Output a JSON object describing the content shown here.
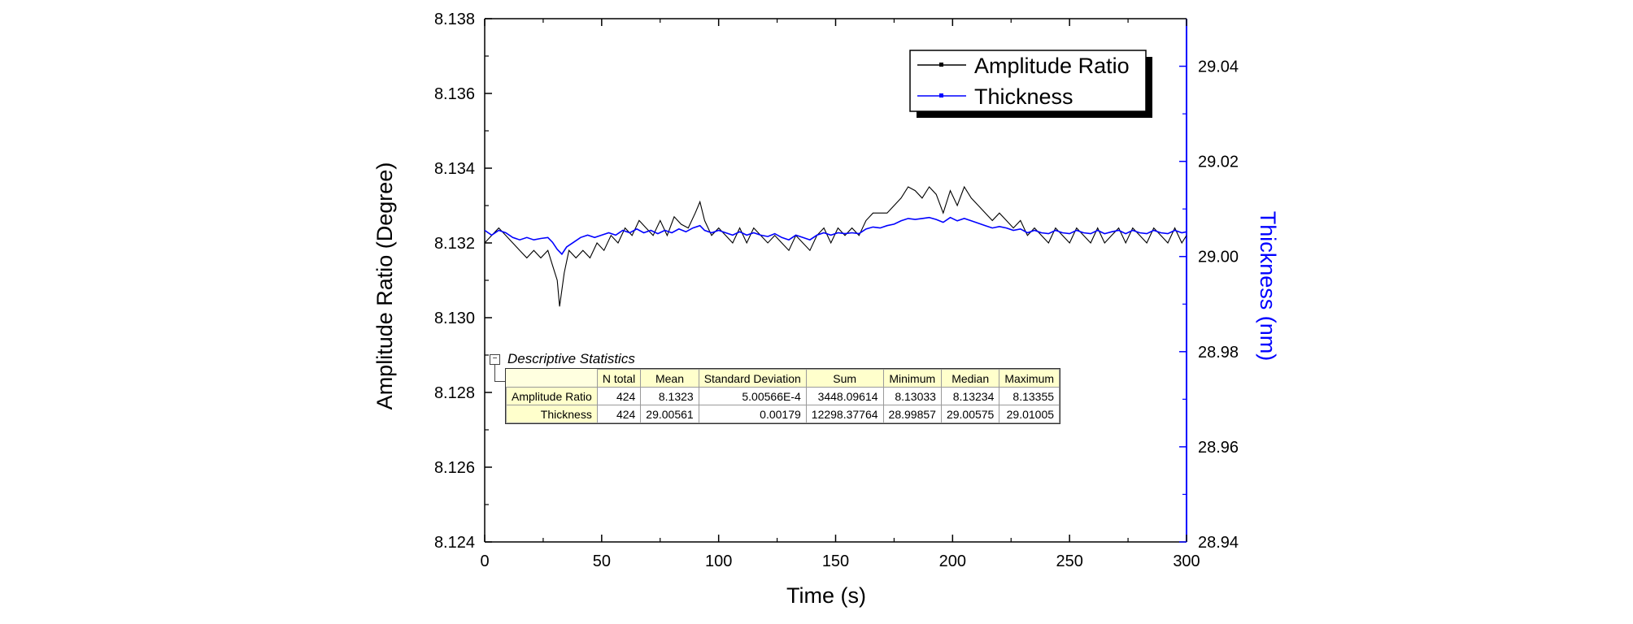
{
  "chart_data": {
    "type": "line",
    "xlabel": "Time (s)",
    "ylabel_left": "Amplitude Ratio (Degree)",
    "ylabel_right": "Thickness (nm)",
    "xlim": [
      0,
      300
    ],
    "ylim_left": [
      8.124,
      8.138
    ],
    "ylim_right": [
      28.94,
      29.05
    ],
    "x_ticks": [
      0,
      50,
      100,
      150,
      200,
      250,
      300
    ],
    "y_left_ticks": [
      "8.124",
      "8.126",
      "8.128",
      "8.130",
      "8.132",
      "8.134",
      "8.136",
      "8.138"
    ],
    "y_right_ticks": [
      "28.94",
      "28.96",
      "28.98",
      "29.00",
      "29.02",
      "29.04"
    ],
    "grid": false,
    "legend_position": "top-right",
    "series": [
      {
        "name": "Amplitude Ratio",
        "axis": "left",
        "color": "#000000",
        "points": [
          [
            0,
            8.132
          ],
          [
            3,
            8.1322
          ],
          [
            6,
            8.1324
          ],
          [
            9,
            8.1322
          ],
          [
            12,
            8.132
          ],
          [
            15,
            8.1318
          ],
          [
            18,
            8.1316
          ],
          [
            21,
            8.1318
          ],
          [
            24,
            8.1316
          ],
          [
            27,
            8.1318
          ],
          [
            29,
            8.1314
          ],
          [
            31,
            8.131
          ],
          [
            32,
            8.1303
          ],
          [
            34,
            8.1312
          ],
          [
            36,
            8.1318
          ],
          [
            39,
            8.1316
          ],
          [
            42,
            8.1318
          ],
          [
            45,
            8.1316
          ],
          [
            48,
            8.132
          ],
          [
            51,
            8.1318
          ],
          [
            54,
            8.1322
          ],
          [
            57,
            8.132
          ],
          [
            60,
            8.1324
          ],
          [
            63,
            8.1322
          ],
          [
            66,
            8.1326
          ],
          [
            69,
            8.1324
          ],
          [
            72,
            8.1322
          ],
          [
            75,
            8.1326
          ],
          [
            78,
            8.1322
          ],
          [
            81,
            8.1327
          ],
          [
            84,
            8.1325
          ],
          [
            87,
            8.1324
          ],
          [
            90,
            8.1328
          ],
          [
            92,
            8.1331
          ],
          [
            94,
            8.1326
          ],
          [
            97,
            8.1322
          ],
          [
            100,
            8.1324
          ],
          [
            103,
            8.1322
          ],
          [
            106,
            8.132
          ],
          [
            109,
            8.1324
          ],
          [
            112,
            8.132
          ],
          [
            115,
            8.1324
          ],
          [
            118,
            8.1322
          ],
          [
            121,
            8.132
          ],
          [
            124,
            8.1322
          ],
          [
            127,
            8.132
          ],
          [
            130,
            8.1318
          ],
          [
            133,
            8.1322
          ],
          [
            136,
            8.132
          ],
          [
            139,
            8.1318
          ],
          [
            142,
            8.1322
          ],
          [
            145,
            8.1324
          ],
          [
            148,
            8.132
          ],
          [
            151,
            8.1324
          ],
          [
            154,
            8.1322
          ],
          [
            157,
            8.1324
          ],
          [
            160,
            8.1322
          ],
          [
            163,
            8.1326
          ],
          [
            166,
            8.1328
          ],
          [
            169,
            8.1328
          ],
          [
            172,
            8.1328
          ],
          [
            175,
            8.133
          ],
          [
            178,
            8.1332
          ],
          [
            181,
            8.1335
          ],
          [
            184,
            8.1334
          ],
          [
            187,
            8.1332
          ],
          [
            190,
            8.1335
          ],
          [
            193,
            8.1333
          ],
          [
            196,
            8.1328
          ],
          [
            199,
            8.1334
          ],
          [
            202,
            8.133
          ],
          [
            205,
            8.1335
          ],
          [
            208,
            8.1332
          ],
          [
            211,
            8.133
          ],
          [
            214,
            8.1328
          ],
          [
            217,
            8.1326
          ],
          [
            220,
            8.1328
          ],
          [
            223,
            8.1326
          ],
          [
            226,
            8.1324
          ],
          [
            229,
            8.1326
          ],
          [
            232,
            8.1322
          ],
          [
            235,
            8.1324
          ],
          [
            238,
            8.1322
          ],
          [
            241,
            8.132
          ],
          [
            244,
            8.1324
          ],
          [
            247,
            8.1322
          ],
          [
            250,
            8.132
          ],
          [
            253,
            8.1324
          ],
          [
            256,
            8.1322
          ],
          [
            259,
            8.132
          ],
          [
            262,
            8.1324
          ],
          [
            265,
            8.132
          ],
          [
            268,
            8.1322
          ],
          [
            271,
            8.1324
          ],
          [
            274,
            8.132
          ],
          [
            277,
            8.1324
          ],
          [
            280,
            8.1322
          ],
          [
            283,
            8.132
          ],
          [
            286,
            8.1324
          ],
          [
            289,
            8.1322
          ],
          [
            292,
            8.132
          ],
          [
            295,
            8.1324
          ],
          [
            298,
            8.132
          ],
          [
            300,
            8.1322
          ]
        ]
      },
      {
        "name": "Thickness",
        "axis": "right",
        "color": "#0000ff",
        "points": [
          [
            0,
            29.0055
          ],
          [
            3,
            29.0045
          ],
          [
            6,
            29.0055
          ],
          [
            9,
            29.005
          ],
          [
            12,
            29.004
          ],
          [
            15,
            29.0035
          ],
          [
            18,
            29.004
          ],
          [
            21,
            29.0035
          ],
          [
            24,
            29.0038
          ],
          [
            27,
            29.004
          ],
          [
            29,
            29.003
          ],
          [
            31,
            29.0015
          ],
          [
            33,
            29.0005
          ],
          [
            35,
            29.002
          ],
          [
            38,
            29.003
          ],
          [
            41,
            29.004
          ],
          [
            44,
            29.0045
          ],
          [
            47,
            29.004
          ],
          [
            50,
            29.0045
          ],
          [
            53,
            29.005
          ],
          [
            56,
            29.0045
          ],
          [
            59,
            29.0055
          ],
          [
            62,
            29.005
          ],
          [
            65,
            29.0058
          ],
          [
            68,
            29.005
          ],
          [
            71,
            29.0055
          ],
          [
            74,
            29.0048
          ],
          [
            77,
            29.0055
          ],
          [
            80,
            29.005
          ],
          [
            83,
            29.0058
          ],
          [
            86,
            29.0052
          ],
          [
            89,
            29.006
          ],
          [
            92,
            29.0065
          ],
          [
            94,
            29.0055
          ],
          [
            97,
            29.005
          ],
          [
            100,
            29.0055
          ],
          [
            103,
            29.005
          ],
          [
            106,
            29.0045
          ],
          [
            109,
            29.0052
          ],
          [
            112,
            29.0045
          ],
          [
            115,
            29.005
          ],
          [
            118,
            29.0045
          ],
          [
            121,
            29.0042
          ],
          [
            124,
            29.0048
          ],
          [
            127,
            29.004
          ],
          [
            130,
            29.0035
          ],
          [
            133,
            29.0045
          ],
          [
            136,
            29.004
          ],
          [
            139,
            29.0035
          ],
          [
            142,
            29.0045
          ],
          [
            145,
            29.005
          ],
          [
            148,
            29.0045
          ],
          [
            151,
            29.005
          ],
          [
            154,
            29.0048
          ],
          [
            157,
            29.005
          ],
          [
            160,
            29.0048
          ],
          [
            163,
            29.0058
          ],
          [
            166,
            29.0062
          ],
          [
            169,
            29.006
          ],
          [
            172,
            29.0065
          ],
          [
            175,
            29.0068
          ],
          [
            178,
            29.0075
          ],
          [
            181,
            29.008
          ],
          [
            184,
            29.0078
          ],
          [
            187,
            29.008
          ],
          [
            190,
            29.0082
          ],
          [
            193,
            29.0078
          ],
          [
            196,
            29.0072
          ],
          [
            199,
            29.0082
          ],
          [
            202,
            29.0075
          ],
          [
            205,
            29.008
          ],
          [
            208,
            29.0075
          ],
          [
            211,
            29.007
          ],
          [
            214,
            29.0065
          ],
          [
            217,
            29.006
          ],
          [
            220,
            29.0063
          ],
          [
            223,
            29.006
          ],
          [
            226,
            29.0055
          ],
          [
            229,
            29.0058
          ],
          [
            232,
            29.005
          ],
          [
            235,
            29.0055
          ],
          [
            238,
            29.005
          ],
          [
            241,
            29.0048
          ],
          [
            244,
            29.0055
          ],
          [
            247,
            29.005
          ],
          [
            250,
            29.0048
          ],
          [
            253,
            29.0055
          ],
          [
            256,
            29.005
          ],
          [
            259,
            29.0048
          ],
          [
            262,
            29.0055
          ],
          [
            265,
            29.0048
          ],
          [
            268,
            29.0052
          ],
          [
            271,
            29.0055
          ],
          [
            274,
            29.0048
          ],
          [
            277,
            29.0055
          ],
          [
            280,
            29.005
          ],
          [
            283,
            29.0048
          ],
          [
            286,
            29.0055
          ],
          [
            289,
            29.005
          ],
          [
            292,
            29.0048
          ],
          [
            295,
            29.0055
          ],
          [
            298,
            29.005
          ],
          [
            300,
            29.0052
          ]
        ]
      }
    ]
  },
  "stats": {
    "caption": "Descriptive Statistics",
    "collapse_glyph": "−",
    "headers": [
      "N total",
      "Mean",
      "Standard Deviation",
      "Sum",
      "Minimum",
      "Median",
      "Maximum"
    ],
    "rows": [
      {
        "label": "Amplitude Ratio",
        "values": [
          "424",
          "8.1323",
          "5.00566E-4",
          "3448.09614",
          "8.13033",
          "8.13234",
          "8.13355"
        ]
      },
      {
        "label": "Thickness",
        "values": [
          "424",
          "29.00561",
          "0.00179",
          "12298.37764",
          "28.99857",
          "29.00575",
          "29.01005"
        ]
      }
    ]
  }
}
